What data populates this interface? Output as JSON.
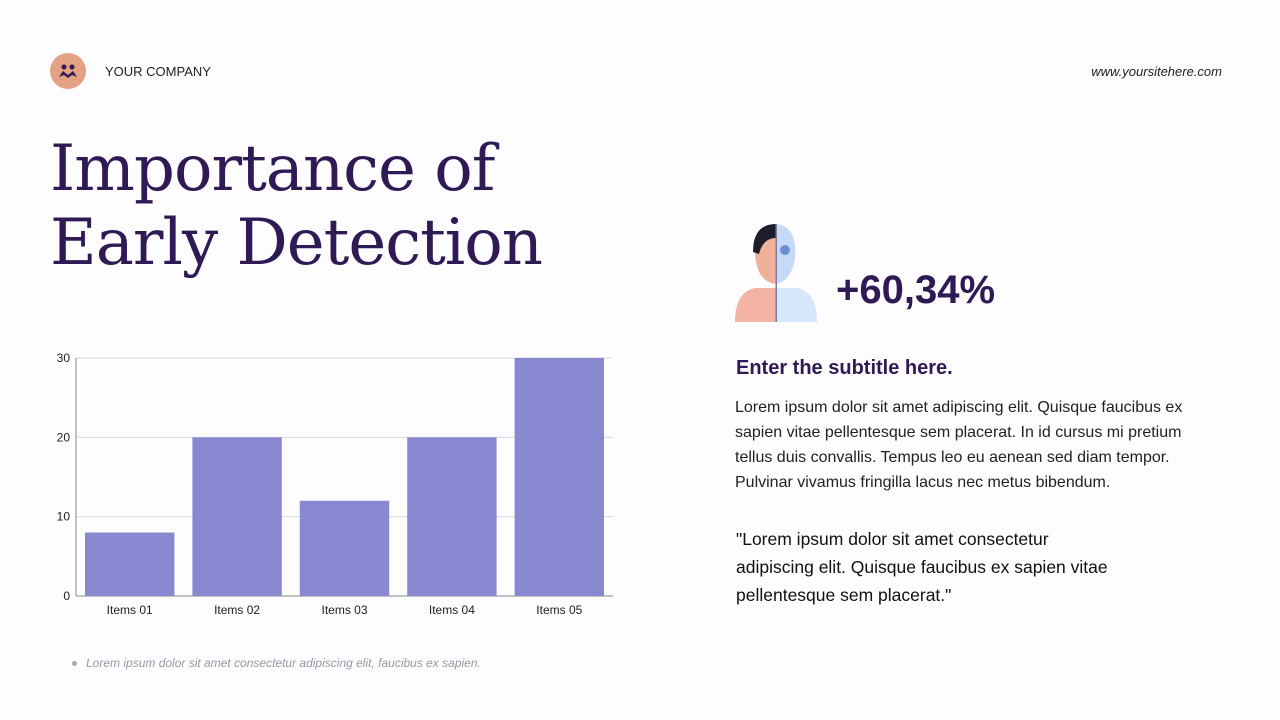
{
  "header": {
    "company": "YOUR COMPANY",
    "website": "www.yoursitehere.com",
    "logo_icon": "people-icon"
  },
  "title": "Importance of Early Detection",
  "stat": {
    "value": "+60,34%",
    "icon": "human-anatomy-icon"
  },
  "subtitle": "Enter the subtitle here.",
  "body": "Lorem ipsum dolor sit amet adipiscing elit. Quisque faucibus ex sapien vitae pellentesque sem placerat. In id cursus mi pretium tellus duis convallis. Tempus leo eu aenean sed diam tempor. Pulvinar vivamus fringilla lacus nec metus bibendum.",
  "quote": "\"Lorem ipsum dolor sit amet consectetur adipiscing elit. Quisque faucibus ex sapien vitae pellentesque sem placerat.\"",
  "footnote": "Lorem ipsum dolor sit amet consectetur adipiscing elit, faucibus ex sapien.",
  "chart_data": {
    "type": "bar",
    "categories": [
      "Items 01",
      "Items 02",
      "Items 03",
      "Items 04",
      "Items 05"
    ],
    "values": [
      8,
      20,
      12,
      20,
      30
    ],
    "ylim": [
      0,
      30
    ],
    "yticks": [
      0,
      10,
      20,
      30
    ],
    "grid": true,
    "color": "#8788cf"
  }
}
